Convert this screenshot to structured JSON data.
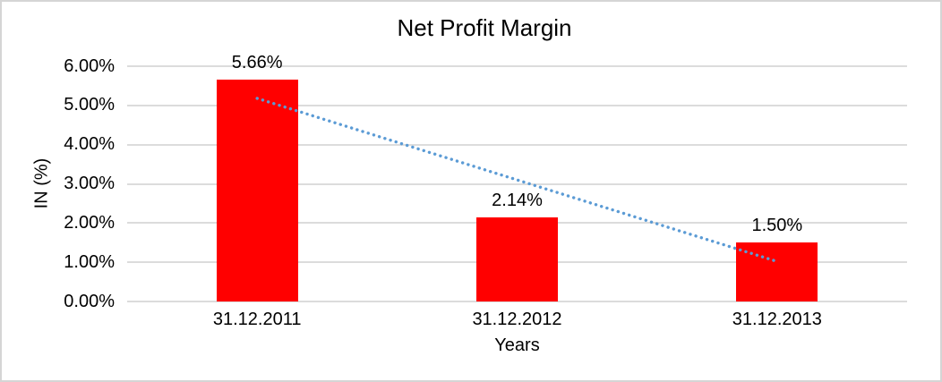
{
  "window": {
    "background": "#FFFFFF",
    "border_color": "#D5D5D5"
  },
  "chart_data": {
    "type": "bar",
    "title": "Net Profit Margin",
    "xlabel": "Years",
    "ylabel": "IN (%)",
    "categories": [
      "31.12.2011",
      "31.12.2012",
      "31.12.2013"
    ],
    "values": [
      5.66,
      2.14,
      1.5
    ],
    "data_labels": [
      "5.66%",
      "2.14%",
      "1.50%"
    ],
    "ylim": [
      0,
      6
    ],
    "y_ticks": [
      {
        "value": 0,
        "label": "0.00%"
      },
      {
        "value": 1,
        "label": "1.00%"
      },
      {
        "value": 2,
        "label": "2.00%"
      },
      {
        "value": 3,
        "label": "3.00%"
      },
      {
        "value": 4,
        "label": "4.00%"
      },
      {
        "value": 5,
        "label": "5.00%"
      },
      {
        "value": 6,
        "label": "6.00%"
      }
    ],
    "grid": true,
    "legend_position": "none",
    "bar_color": "#FF0000",
    "gridline_color": "#DCDCDC",
    "text_color": "#000000",
    "trendline": {
      "type": "linear",
      "style": "dotted",
      "color": "#5B9BD5",
      "points": [
        {
          "category_index": 0,
          "value": 5.18
        },
        {
          "category_index": 2,
          "value": 1.02
        }
      ]
    }
  }
}
